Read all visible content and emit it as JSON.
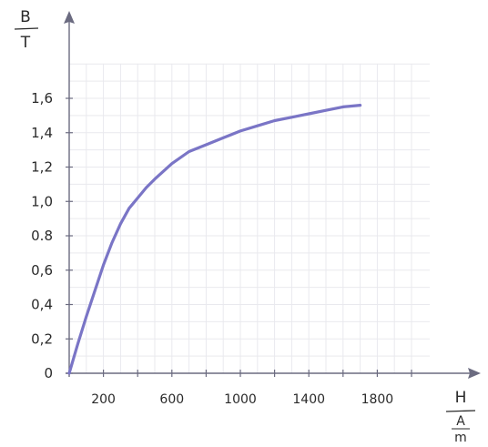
{
  "chart_data": {
    "type": "line",
    "title": "",
    "ylabel": {
      "symbol": "B",
      "unit": "T"
    },
    "xlabel": {
      "symbol": "H",
      "unit_num": "A",
      "unit_den": "m"
    },
    "xlim": [
      0,
      2000
    ],
    "ylim": [
      0,
      1.6
    ],
    "grid": true,
    "y_ticks": [
      {
        "value": 0,
        "label": "0"
      },
      {
        "value": 0.2,
        "label": "0,2"
      },
      {
        "value": 0.4,
        "label": "0,4"
      },
      {
        "value": 0.6,
        "label": "0,6"
      },
      {
        "value": 0.8,
        "label": "0.8"
      },
      {
        "value": 1.0,
        "label": "1,0"
      },
      {
        "value": 1.2,
        "label": "1,2"
      },
      {
        "value": 1.4,
        "label": "1,4"
      },
      {
        "value": 1.6,
        "label": "1,6"
      }
    ],
    "x_ticks": [
      {
        "value": 200,
        "label": "200"
      },
      {
        "value": 600,
        "label": "600"
      },
      {
        "value": 1000,
        "label": "1000"
      },
      {
        "value": 1400,
        "label": "1400"
      },
      {
        "value": 1800,
        "label": "1800"
      }
    ],
    "series": [
      {
        "color": "#7a75c6",
        "x": [
          0,
          50,
          100,
          150,
          200,
          250,
          300,
          350,
          400,
          450,
          500,
          600,
          700,
          800,
          900,
          1000,
          1100,
          1200,
          1300,
          1400,
          1500,
          1600,
          1700
        ],
        "y": [
          0,
          0.17,
          0.33,
          0.48,
          0.63,
          0.76,
          0.87,
          0.96,
          1.02,
          1.08,
          1.13,
          1.22,
          1.29,
          1.33,
          1.37,
          1.41,
          1.44,
          1.47,
          1.49,
          1.51,
          1.53,
          1.55,
          1.56
        ]
      }
    ]
  }
}
